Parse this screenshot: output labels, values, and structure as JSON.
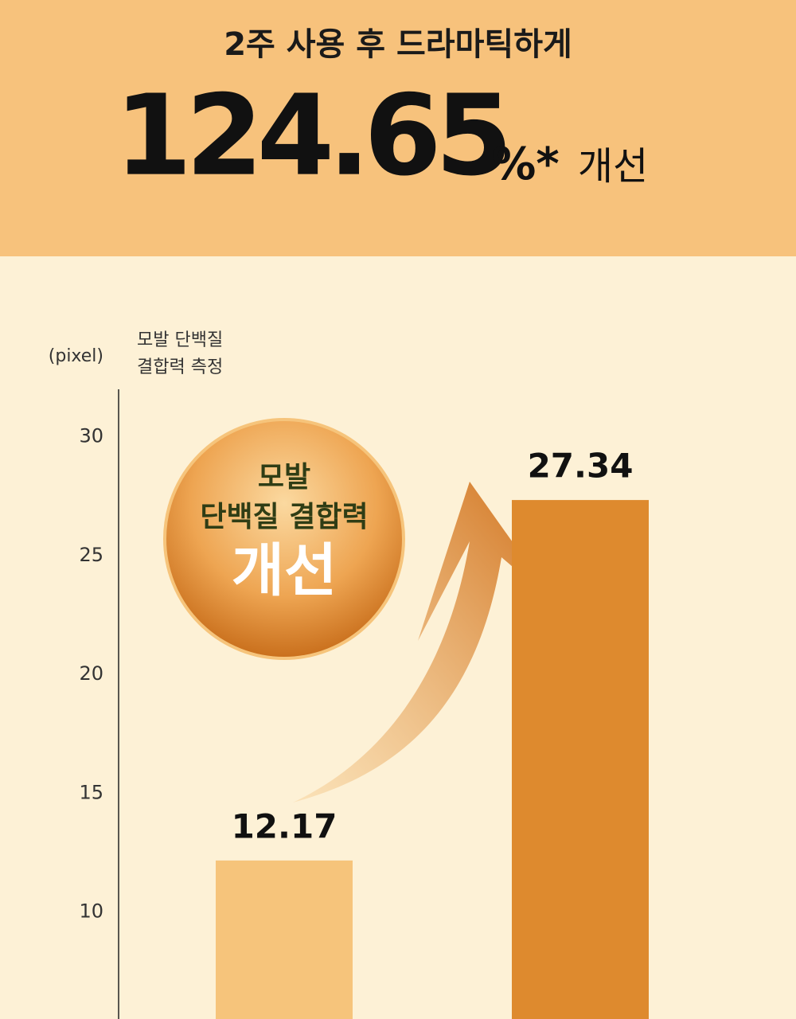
{
  "header": {
    "title": "2주 사용 후 드라마틱하게",
    "headline_value": 124.65,
    "headline_unit": "%*",
    "headline_suffix": "개선"
  },
  "chart_data": {
    "type": "bar",
    "y_label": "(pixel)",
    "measure_label": [
      "모발 단백질",
      "결합력 측정"
    ],
    "badge": [
      "모발",
      "단백질 결합력",
      "개선"
    ],
    "categories": [
      null,
      null
    ],
    "values": [
      12.17,
      27.34
    ],
    "colors": [
      "#f6c47b",
      "#de8a2e"
    ],
    "ylim": [
      5.5,
      32
    ],
    "yticks": [
      10,
      15,
      20,
      25,
      30
    ]
  }
}
